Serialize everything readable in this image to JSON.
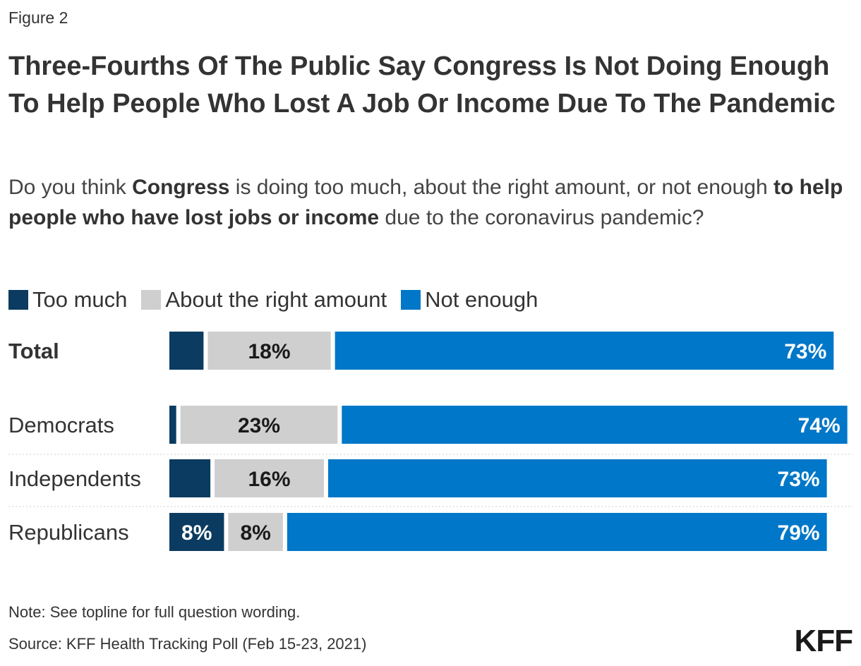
{
  "figure_label": "Figure 2",
  "title": "Three-Fourths Of The Public Say Congress Is Not Doing Enough To Help People Who Lost A Job Or Income Due To The Pandemic",
  "subtitle": {
    "part1": "Do you think ",
    "bold1": "Congress",
    "part2": " is doing too much, about the right amount, or not enough ",
    "bold2": "to help people who have lost jobs or income",
    "part3": " due to the coronavirus pandemic?"
  },
  "colors": {
    "too_much": "#0b3b60",
    "about_right": "#cfcfcf",
    "not_enough": "#0077c8",
    "label_light": "#ffffff",
    "label_dark": "#1a1a1a",
    "separator": "#cccccc"
  },
  "chart_data": {
    "type": "bar",
    "orientation": "horizontal",
    "stacked": true,
    "categories": [
      "Total",
      "Democrats",
      "Independents",
      "Republicans"
    ],
    "category_bold": [
      true,
      false,
      false,
      false
    ],
    "series": [
      {
        "name": "Too much",
        "values": [
          5,
          1,
          6,
          8
        ],
        "labels": [
          "",
          "",
          "",
          "8%"
        ]
      },
      {
        "name": "About the right amount",
        "values": [
          18,
          23,
          16,
          8
        ],
        "labels": [
          "18%",
          "23%",
          "16%",
          "8%"
        ]
      },
      {
        "name": "Not enough",
        "values": [
          73,
          74,
          73,
          79
        ],
        "labels": [
          "73%",
          "74%",
          "73%",
          "79%"
        ]
      }
    ],
    "legend_position": "top-left",
    "grid": false
  },
  "footer": {
    "note": "Note: See topline for full question wording.",
    "source": "Source: KFF Health Tracking Poll (Feb 15-23, 2021)",
    "logo": "KFF"
  }
}
